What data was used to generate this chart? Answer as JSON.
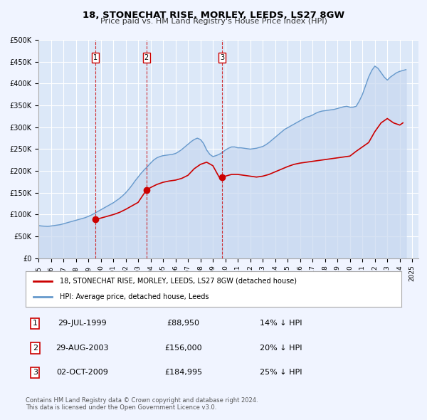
{
  "title": "18, STONECHAT RISE, MORLEY, LEEDS, LS27 8GW",
  "subtitle": "Price paid vs. HM Land Registry's House Price Index (HPI)",
  "background_color": "#f0f4ff",
  "plot_bg_color": "#dce8f8",
  "grid_color": "#ffffff",
  "sale_dates": [
    1999.57,
    2003.66,
    2009.75
  ],
  "sale_prices": [
    88950,
    156000,
    184995
  ],
  "sale_labels": [
    "1",
    "2",
    "3"
  ],
  "sale_line_color": "#cc0000",
  "sale_marker_color": "#cc0000",
  "hpi_line_color": "#6699cc",
  "hpi_fill_color": "#c8d8f0",
  "vline_color": "#cc0000",
  "ylim": [
    0,
    500000
  ],
  "xlim": [
    1995.0,
    2025.5
  ],
  "yticks": [
    0,
    50000,
    100000,
    150000,
    200000,
    250000,
    300000,
    350000,
    400000,
    450000,
    500000
  ],
  "ytick_labels": [
    "£0",
    "£50K",
    "£100K",
    "£150K",
    "£200K",
    "£250K",
    "£300K",
    "£350K",
    "£400K",
    "£450K",
    "£500K"
  ],
  "xtick_years": [
    1995,
    1996,
    1997,
    1998,
    1999,
    2000,
    2001,
    2002,
    2003,
    2004,
    2005,
    2006,
    2007,
    2008,
    2009,
    2010,
    2011,
    2012,
    2013,
    2014,
    2015,
    2016,
    2017,
    2018,
    2019,
    2020,
    2021,
    2022,
    2023,
    2024,
    2025
  ],
  "legend_label_sale": "18, STONECHAT RISE, MORLEY, LEEDS, LS27 8GW (detached house)",
  "legend_label_hpi": "HPI: Average price, detached house, Leeds",
  "table_rows": [
    {
      "num": "1",
      "date": "29-JUL-1999",
      "price": "£88,950",
      "hpi": "14% ↓ HPI"
    },
    {
      "num": "2",
      "date": "29-AUG-2003",
      "price": "£156,000",
      "hpi": "20% ↓ HPI"
    },
    {
      "num": "3",
      "date": "02-OCT-2009",
      "price": "£184,995",
      "hpi": "25% ↓ HPI"
    }
  ],
  "footnote1": "Contains HM Land Registry data © Crown copyright and database right 2024.",
  "footnote2": "This data is licensed under the Open Government Licence v3.0.",
  "hpi_data": {
    "years": [
      1995.0,
      1995.25,
      1995.5,
      1995.75,
      1996.0,
      1996.25,
      1996.5,
      1996.75,
      1997.0,
      1997.25,
      1997.5,
      1997.75,
      1998.0,
      1998.25,
      1998.5,
      1998.75,
      1999.0,
      1999.25,
      1999.5,
      1999.75,
      2000.0,
      2000.25,
      2000.5,
      2000.75,
      2001.0,
      2001.25,
      2001.5,
      2001.75,
      2002.0,
      2002.25,
      2002.5,
      2002.75,
      2003.0,
      2003.25,
      2003.5,
      2003.75,
      2004.0,
      2004.25,
      2004.5,
      2004.75,
      2005.0,
      2005.25,
      2005.5,
      2005.75,
      2006.0,
      2006.25,
      2006.5,
      2006.75,
      2007.0,
      2007.25,
      2007.5,
      2007.75,
      2008.0,
      2008.25,
      2008.5,
      2008.75,
      2009.0,
      2009.25,
      2009.5,
      2009.75,
      2010.0,
      2010.25,
      2010.5,
      2010.75,
      2011.0,
      2011.25,
      2011.5,
      2011.75,
      2012.0,
      2012.25,
      2012.5,
      2012.75,
      2013.0,
      2013.25,
      2013.5,
      2013.75,
      2014.0,
      2014.25,
      2014.5,
      2014.75,
      2015.0,
      2015.25,
      2015.5,
      2015.75,
      2016.0,
      2016.25,
      2016.5,
      2016.75,
      2017.0,
      2017.25,
      2017.5,
      2017.75,
      2018.0,
      2018.25,
      2018.5,
      2018.75,
      2019.0,
      2019.25,
      2019.5,
      2019.75,
      2020.0,
      2020.25,
      2020.5,
      2020.75,
      2021.0,
      2021.25,
      2021.5,
      2021.75,
      2022.0,
      2022.25,
      2022.5,
      2022.75,
      2023.0,
      2023.25,
      2023.5,
      2023.75,
      2024.0,
      2024.25,
      2024.5
    ],
    "values": [
      75000,
      74000,
      73500,
      73000,
      74000,
      75000,
      76000,
      77000,
      79000,
      81000,
      83000,
      85000,
      87000,
      89000,
      91000,
      93000,
      96000,
      99000,
      103000,
      107000,
      111000,
      115000,
      119000,
      123000,
      127000,
      132000,
      137000,
      143000,
      150000,
      158000,
      167000,
      177000,
      186000,
      195000,
      203000,
      210000,
      218000,
      225000,
      230000,
      233000,
      235000,
      236000,
      237000,
      238000,
      240000,
      244000,
      249000,
      255000,
      261000,
      267000,
      272000,
      275000,
      272000,
      263000,
      248000,
      238000,
      233000,
      235000,
      238000,
      242000,
      248000,
      252000,
      255000,
      255000,
      253000,
      253000,
      252000,
      251000,
      250000,
      251000,
      252000,
      254000,
      256000,
      260000,
      265000,
      271000,
      277000,
      283000,
      289000,
      295000,
      299000,
      303000,
      307000,
      311000,
      315000,
      319000,
      323000,
      325000,
      328000,
      332000,
      335000,
      337000,
      338000,
      339000,
      340000,
      341000,
      343000,
      345000,
      347000,
      348000,
      346000,
      346000,
      348000,
      360000,
      375000,
      395000,
      415000,
      430000,
      440000,
      435000,
      425000,
      415000,
      408000,
      415000,
      420000,
      425000,
      428000,
      430000,
      432000
    ]
  },
  "sale_line_data": {
    "years": [
      1999.57,
      1999.57,
      2000.0,
      2000.5,
      2001.0,
      2001.5,
      2002.0,
      2002.5,
      2003.0,
      2003.66,
      2003.66,
      2004.0,
      2004.5,
      2005.0,
      2005.5,
      2006.0,
      2006.5,
      2007.0,
      2007.5,
      2008.0,
      2008.5,
      2009.0,
      2009.5,
      2009.75,
      2009.75,
      2010.0,
      2010.5,
      2011.0,
      2011.5,
      2012.0,
      2012.5,
      2013.0,
      2013.5,
      2014.0,
      2014.5,
      2015.0,
      2015.5,
      2016.0,
      2016.5,
      2017.0,
      2017.5,
      2018.0,
      2018.5,
      2019.0,
      2019.5,
      2020.0,
      2020.5,
      2021.0,
      2021.5,
      2022.0,
      2022.5,
      2023.0,
      2023.5,
      2024.0,
      2024.25
    ],
    "values": [
      88950,
      88950,
      92000,
      96000,
      100000,
      105000,
      112000,
      120000,
      128000,
      156000,
      156000,
      162000,
      169000,
      174000,
      177000,
      179000,
      183000,
      190000,
      205000,
      215000,
      220000,
      212000,
      186000,
      184995,
      184995,
      188000,
      192000,
      192000,
      190000,
      188000,
      186000,
      188000,
      192000,
      198000,
      204000,
      210000,
      215000,
      218000,
      220000,
      222000,
      224000,
      226000,
      228000,
      230000,
      232000,
      234000,
      245000,
      255000,
      265000,
      290000,
      310000,
      320000,
      310000,
      305000,
      310000
    ]
  }
}
